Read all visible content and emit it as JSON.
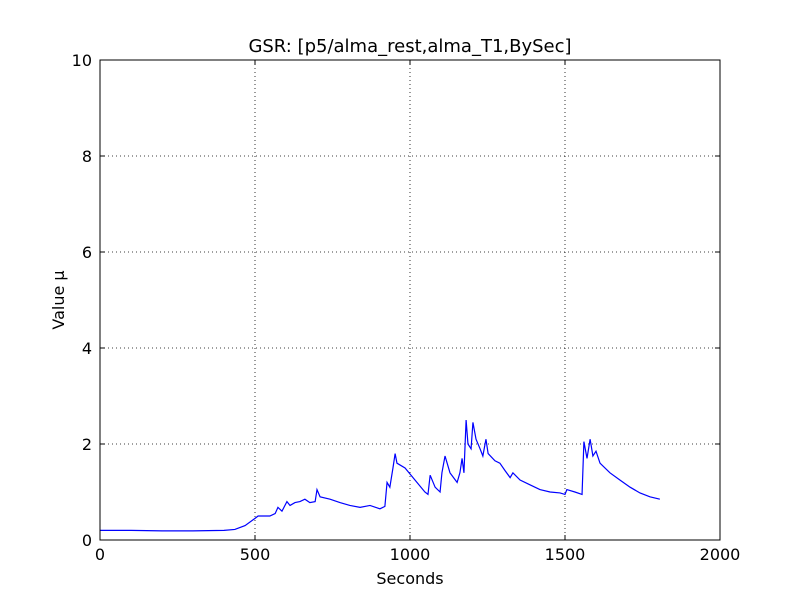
{
  "chart_data": {
    "type": "line",
    "title": "GSR: [p5/alma_rest,alma_T1,BySec]",
    "x_label": "Seconds",
    "y_label": "Value µ",
    "xlim": [
      0,
      2000
    ],
    "ylim": [
      0,
      10
    ],
    "xticks": [
      0,
      500,
      1000,
      1500,
      2000
    ],
    "yticks": [
      0,
      2,
      4,
      6,
      8,
      10
    ],
    "grid": true,
    "series": [
      {
        "name": "GSR",
        "color": "#0000ff",
        "x": [
          0,
          100,
          200,
          300,
          400,
          435,
          468,
          500,
          510,
          548,
          565,
          574,
          587,
          603,
          613,
          629,
          645,
          661,
          677,
          694,
          700,
          710,
          742,
          774,
          806,
          839,
          871,
          903,
          919,
          926,
          935,
          945,
          952,
          958,
          984,
          1016,
          1048,
          1058,
          1065,
          1081,
          1097,
          1103,
          1113,
          1129,
          1152,
          1161,
          1168,
          1174,
          1181,
          1187,
          1197,
          1203,
          1213,
          1226,
          1235,
          1245,
          1252,
          1274,
          1290,
          1306,
          1323,
          1332,
          1355,
          1387,
          1419,
          1452,
          1484,
          1500,
          1506,
          1532,
          1555,
          1561,
          1571,
          1581,
          1590,
          1600,
          1613,
          1645,
          1677,
          1710,
          1742,
          1774,
          1806
        ],
        "values": [
          0.2,
          0.2,
          0.19,
          0.19,
          0.2,
          0.22,
          0.3,
          0.45,
          0.5,
          0.5,
          0.55,
          0.68,
          0.6,
          0.8,
          0.72,
          0.78,
          0.8,
          0.85,
          0.78,
          0.8,
          1.05,
          0.9,
          0.85,
          0.78,
          0.72,
          0.68,
          0.72,
          0.65,
          0.7,
          1.2,
          1.1,
          1.5,
          1.8,
          1.6,
          1.5,
          1.25,
          1.0,
          0.95,
          1.35,
          1.1,
          1.0,
          1.4,
          1.75,
          1.4,
          1.2,
          1.4,
          1.7,
          1.4,
          2.5,
          2.0,
          1.9,
          2.45,
          2.1,
          1.9,
          1.75,
          2.1,
          1.8,
          1.65,
          1.6,
          1.45,
          1.3,
          1.4,
          1.25,
          1.15,
          1.05,
          1.0,
          0.98,
          0.95,
          1.05,
          1.0,
          0.95,
          2.05,
          1.7,
          2.1,
          1.75,
          1.85,
          1.6,
          1.4,
          1.25,
          1.1,
          0.98,
          0.9,
          0.85
        ]
      }
    ]
  }
}
